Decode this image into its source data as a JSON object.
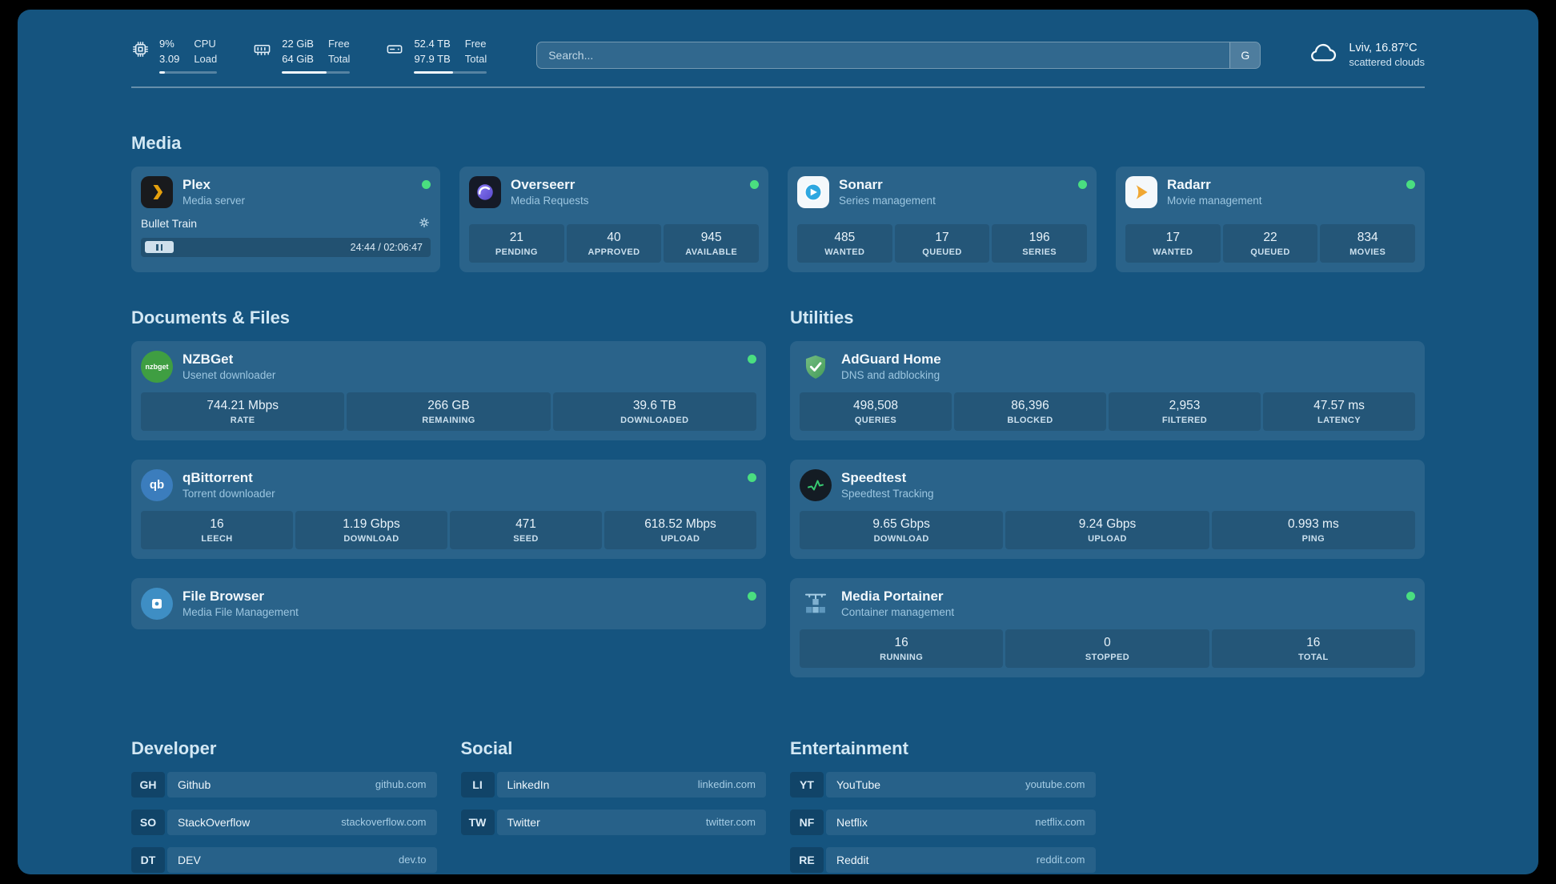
{
  "theme": {
    "background": "#15547f",
    "card": "rgba(255,255,255,0.09)",
    "stat_box": "rgba(0,0,0,0.13)",
    "status_online": "#4ade80",
    "heading_text": "#d3e8f4",
    "muted_text": "#9cc6e0",
    "plex_brand": "#e5a00d",
    "adguard_brand": "#53a45d",
    "speedtest_brand": "#37c871"
  },
  "topbar": {
    "cpu": {
      "value1": "9%",
      "value2": "3.09",
      "label1": "CPU",
      "label2": "Load",
      "bar_percent": 9
    },
    "memory": {
      "value1": "22 GiB",
      "value2": "64 GiB",
      "label1": "Free",
      "label2": "Total",
      "bar_percent": 66
    },
    "disk": {
      "value1": "52.4 TB",
      "value2": "97.9 TB",
      "label1": "Free",
      "label2": "Total",
      "bar_percent": 53
    },
    "search": {
      "placeholder": "Search...",
      "engine": "G"
    },
    "weather": {
      "location": "Lviv, 16.87°C",
      "condition": "scattered clouds"
    }
  },
  "media": {
    "title": "Media",
    "plex": {
      "name": "Plex",
      "subtitle": "Media server",
      "now_playing": "Bullet Train",
      "time": "24:44 / 02:06:47"
    },
    "overseerr": {
      "name": "Overseerr",
      "subtitle": "Media Requests",
      "stats": [
        {
          "value": "21",
          "label": "PENDING"
        },
        {
          "value": "40",
          "label": "APPROVED"
        },
        {
          "value": "945",
          "label": "AVAILABLE"
        }
      ]
    },
    "sonarr": {
      "name": "Sonarr",
      "subtitle": "Series management",
      "stats": [
        {
          "value": "485",
          "label": "WANTED"
        },
        {
          "value": "17",
          "label": "QUEUED"
        },
        {
          "value": "196",
          "label": "SERIES"
        }
      ]
    },
    "radarr": {
      "name": "Radarr",
      "subtitle": "Movie management",
      "stats": [
        {
          "value": "17",
          "label": "WANTED"
        },
        {
          "value": "22",
          "label": "QUEUED"
        },
        {
          "value": "834",
          "label": "MOVIES"
        }
      ]
    }
  },
  "documents": {
    "title": "Documents & Files",
    "nzbget": {
      "name": "NZBGet",
      "subtitle": "Usenet downloader",
      "stats": [
        {
          "value": "744.21 Mbps",
          "label": "RATE"
        },
        {
          "value": "266 GB",
          "label": "REMAINING"
        },
        {
          "value": "39.6 TB",
          "label": "DOWNLOADED"
        }
      ]
    },
    "qbittorrent": {
      "name": "qBittorrent",
      "subtitle": "Torrent downloader",
      "stats": [
        {
          "value": "16",
          "label": "LEECH"
        },
        {
          "value": "1.19 Gbps",
          "label": "DOWNLOAD"
        },
        {
          "value": "471",
          "label": "SEED"
        },
        {
          "value": "618.52 Mbps",
          "label": "UPLOAD"
        }
      ]
    },
    "filebrowser": {
      "name": "File Browser",
      "subtitle": "Media File Management"
    }
  },
  "utilities": {
    "title": "Utilities",
    "adguard": {
      "name": "AdGuard Home",
      "subtitle": "DNS and adblocking",
      "stats": [
        {
          "value": "498,508",
          "label": "QUERIES"
        },
        {
          "value": "86,396",
          "label": "BLOCKED"
        },
        {
          "value": "2,953",
          "label": "FILTERED"
        },
        {
          "value": "47.57 ms",
          "label": "LATENCY"
        }
      ]
    },
    "speedtest": {
      "name": "Speedtest",
      "subtitle": "Speedtest Tracking",
      "stats": [
        {
          "value": "9.65 Gbps",
          "label": "DOWNLOAD"
        },
        {
          "value": "9.24 Gbps",
          "label": "UPLOAD"
        },
        {
          "value": "0.993 ms",
          "label": "PING"
        }
      ]
    },
    "portainer": {
      "name": "Media Portainer",
      "subtitle": "Container management",
      "stats": [
        {
          "value": "16",
          "label": "RUNNING"
        },
        {
          "value": "0",
          "label": "STOPPED"
        },
        {
          "value": "16",
          "label": "TOTAL"
        }
      ]
    }
  },
  "bookmarks": {
    "developer": {
      "title": "Developer",
      "items": [
        {
          "abbr": "GH",
          "name": "Github",
          "url": "github.com"
        },
        {
          "abbr": "SO",
          "name": "StackOverflow",
          "url": "stackoverflow.com"
        },
        {
          "abbr": "DT",
          "name": "DEV",
          "url": "dev.to"
        }
      ]
    },
    "social": {
      "title": "Social",
      "items": [
        {
          "abbr": "LI",
          "name": "LinkedIn",
          "url": "linkedin.com"
        },
        {
          "abbr": "TW",
          "name": "Twitter",
          "url": "twitter.com"
        }
      ]
    },
    "entertainment": {
      "title": "Entertainment",
      "items": [
        {
          "abbr": "YT",
          "name": "YouTube",
          "url": "youtube.com"
        },
        {
          "abbr": "NF",
          "name": "Netflix",
          "url": "netflix.com"
        },
        {
          "abbr": "RE",
          "name": "Reddit",
          "url": "reddit.com"
        }
      ]
    }
  },
  "nzbget_icon_text": "nzbget",
  "qb_icon_text": "qb"
}
